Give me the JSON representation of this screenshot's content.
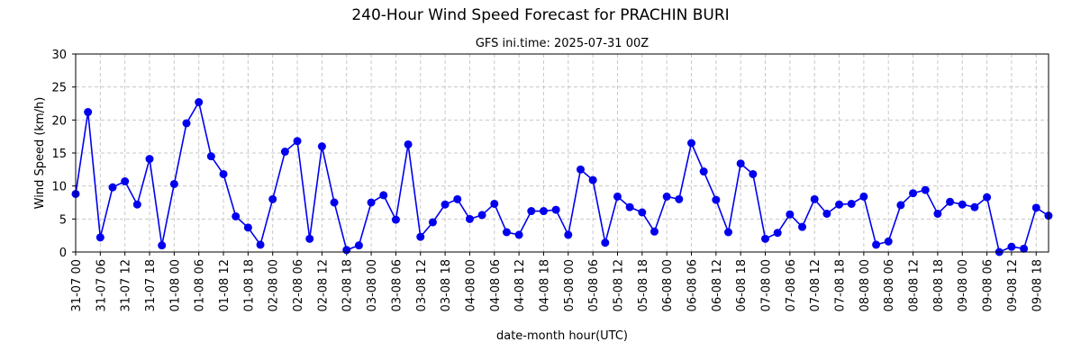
{
  "chart_data": {
    "type": "line",
    "title": "240-Hour Wind Speed Forecast for PRACHIN BURI",
    "subtitle": "GFS ini.time: 2025-07-31 00Z",
    "xlabel": "date-month hour(UTC)",
    "ylabel": "Wind Speed (km/h)",
    "ylim": [
      0,
      30
    ],
    "yticks": [
      0,
      5,
      10,
      15,
      20,
      25,
      30
    ],
    "xticks": [
      "31-07 00",
      "31-07 06",
      "31-07 12",
      "31-07 18",
      "01-08 00",
      "01-08 06",
      "01-08 12",
      "01-08 18",
      "02-08 00",
      "02-08 06",
      "02-08 12",
      "02-08 18",
      "03-08 00",
      "03-08 06",
      "03-08 12",
      "03-08 18",
      "04-08 00",
      "04-08 06",
      "04-08 12",
      "04-08 18",
      "05-08 00",
      "05-08 06",
      "05-08 12",
      "05-08 18",
      "06-08 00",
      "06-08 06",
      "06-08 12",
      "06-08 18",
      "07-08 00",
      "07-08 06",
      "07-08 12",
      "07-08 18",
      "08-08 00",
      "08-08 06",
      "08-08 12",
      "08-08 18",
      "09-08 00",
      "09-08 06",
      "09-08 12",
      "09-08 18"
    ],
    "grid": true,
    "color": "#0000ee",
    "series": [
      {
        "x_start": "2025-07-31 00Z",
        "x_step_hours": 3,
        "values": [
          8.8,
          21.2,
          2.2,
          9.8,
          10.7,
          7.2,
          14.1,
          1.0,
          10.3,
          19.5,
          22.7,
          14.5,
          11.8,
          5.4,
          3.7,
          1.1,
          8.0,
          15.2,
          16.8,
          2.0,
          16.0,
          7.5,
          0.3,
          1.0,
          7.5,
          8.6,
          4.9,
          16.3,
          2.3,
          4.5,
          7.2,
          8.0,
          5.0,
          5.6,
          7.3,
          3.0,
          2.6,
          6.2,
          6.2,
          6.4,
          2.6,
          12.5,
          10.9,
          1.4,
          8.4,
          6.8,
          6.0,
          3.1,
          8.4,
          8.0,
          16.5,
          12.2,
          7.9,
          3.0,
          13.4,
          11.8,
          2.0,
          2.9,
          5.7,
          3.8,
          8.0,
          5.8,
          7.2,
          7.3,
          8.4,
          1.1,
          1.6,
          7.1,
          8.9,
          9.4,
          5.8,
          7.6,
          7.2,
          6.8,
          8.3,
          0.0,
          0.8,
          0.5,
          6.7,
          5.5
        ]
      }
    ]
  }
}
